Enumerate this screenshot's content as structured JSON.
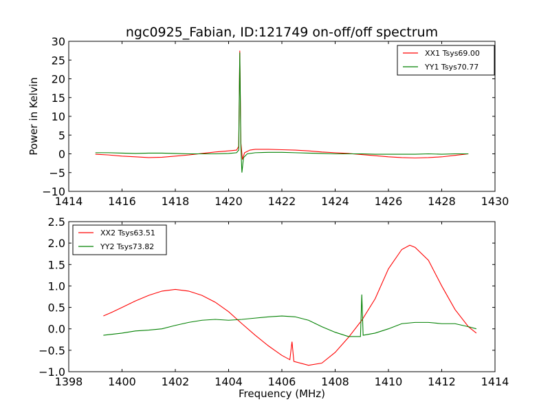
{
  "title": "ngc0925_Fabian, ID:121749 on-off/off spectrum",
  "chart_data": [
    {
      "type": "line",
      "ylabel": "Power in Kelvin",
      "xlabel": "",
      "xlim": [
        1414,
        1430
      ],
      "ylim": [
        -10,
        30
      ],
      "xticks": [
        1414,
        1416,
        1418,
        1420,
        1422,
        1424,
        1426,
        1428,
        1430
      ],
      "yticks": [
        -10,
        -5,
        0,
        5,
        10,
        15,
        20,
        25,
        30
      ],
      "legend_position": "top-right",
      "series": [
        {
          "name": "XX1 Tsys69.00",
          "color": "#ff0000",
          "points": [
            [
              1415.0,
              -0.1
            ],
            [
              1415.5,
              -0.3
            ],
            [
              1416.0,
              -0.6
            ],
            [
              1416.5,
              -0.8
            ],
            [
              1417.0,
              -1.0
            ],
            [
              1417.5,
              -0.9
            ],
            [
              1418.0,
              -0.6
            ],
            [
              1418.5,
              -0.3
            ],
            [
              1419.0,
              0.1
            ],
            [
              1419.5,
              0.5
            ],
            [
              1420.0,
              0.8
            ],
            [
              1420.3,
              1.0
            ],
            [
              1420.38,
              2.0
            ],
            [
              1420.42,
              27.5
            ],
            [
              1420.46,
              3.0
            ],
            [
              1420.52,
              -1.5
            ],
            [
              1420.6,
              0.3
            ],
            [
              1420.8,
              1.0
            ],
            [
              1421.0,
              1.2
            ],
            [
              1421.5,
              1.2
            ],
            [
              1422.0,
              1.1
            ],
            [
              1422.5,
              1.0
            ],
            [
              1423.0,
              0.8
            ],
            [
              1423.5,
              0.5
            ],
            [
              1424.0,
              0.3
            ],
            [
              1424.5,
              0.1
            ],
            [
              1425.0,
              -0.2
            ],
            [
              1425.5,
              -0.5
            ],
            [
              1426.0,
              -0.8
            ],
            [
              1426.5,
              -1.0
            ],
            [
              1427.0,
              -1.1
            ],
            [
              1427.5,
              -1.0
            ],
            [
              1428.0,
              -0.8
            ],
            [
              1428.5,
              -0.4
            ],
            [
              1429.0,
              0.0
            ]
          ]
        },
        {
          "name": "YY1 Tsys70.77",
          "color": "#008000",
          "points": [
            [
              1415.0,
              0.3
            ],
            [
              1415.5,
              0.3
            ],
            [
              1416.0,
              0.2
            ],
            [
              1416.5,
              0.1
            ],
            [
              1417.0,
              0.2
            ],
            [
              1417.5,
              0.2
            ],
            [
              1418.0,
              0.1
            ],
            [
              1418.5,
              0.0
            ],
            [
              1419.0,
              0.0
            ],
            [
              1419.5,
              0.0
            ],
            [
              1420.0,
              0.1
            ],
            [
              1420.3,
              0.3
            ],
            [
              1420.38,
              1.0
            ],
            [
              1420.42,
              27.0
            ],
            [
              1420.46,
              2.0
            ],
            [
              1420.5,
              -5.0
            ],
            [
              1420.56,
              -1.0
            ],
            [
              1420.7,
              0.0
            ],
            [
              1421.0,
              0.3
            ],
            [
              1421.5,
              0.4
            ],
            [
              1422.0,
              0.4
            ],
            [
              1422.5,
              0.3
            ],
            [
              1423.0,
              0.2
            ],
            [
              1423.5,
              0.1
            ],
            [
              1424.0,
              0.0
            ],
            [
              1424.5,
              0.0
            ],
            [
              1425.0,
              0.0
            ],
            [
              1425.5,
              -0.1
            ],
            [
              1426.0,
              -0.1
            ],
            [
              1426.5,
              -0.1
            ],
            [
              1427.0,
              -0.1
            ],
            [
              1427.5,
              0.0
            ],
            [
              1428.0,
              -0.1
            ],
            [
              1428.5,
              0.0
            ],
            [
              1429.0,
              0.0
            ]
          ]
        }
      ]
    },
    {
      "type": "line",
      "xlabel": "Frequency (MHz)",
      "ylabel": "",
      "xlim": [
        1398,
        1414
      ],
      "ylim": [
        -1.0,
        2.5
      ],
      "xticks": [
        1398,
        1400,
        1402,
        1404,
        1406,
        1408,
        1410,
        1412,
        1414
      ],
      "yticks": [
        -1.0,
        -0.5,
        0.0,
        0.5,
        1.0,
        1.5,
        2.0,
        2.5
      ],
      "legend_position": "top-left",
      "series": [
        {
          "name": "XX2 Tsys63.51",
          "color": "#ff0000",
          "points": [
            [
              1399.3,
              0.3
            ],
            [
              1399.6,
              0.38
            ],
            [
              1400.0,
              0.5
            ],
            [
              1400.5,
              0.65
            ],
            [
              1401.0,
              0.78
            ],
            [
              1401.5,
              0.88
            ],
            [
              1402.0,
              0.92
            ],
            [
              1402.5,
              0.88
            ],
            [
              1403.0,
              0.78
            ],
            [
              1403.5,
              0.62
            ],
            [
              1404.0,
              0.4
            ],
            [
              1404.5,
              0.12
            ],
            [
              1405.0,
              -0.15
            ],
            [
              1405.5,
              -0.4
            ],
            [
              1406.0,
              -0.62
            ],
            [
              1406.3,
              -0.72
            ],
            [
              1406.38,
              -0.3
            ],
            [
              1406.45,
              -0.76
            ],
            [
              1407.0,
              -0.85
            ],
            [
              1407.5,
              -0.8
            ],
            [
              1408.0,
              -0.55
            ],
            [
              1408.5,
              -0.2
            ],
            [
              1409.0,
              0.2
            ],
            [
              1409.5,
              0.7
            ],
            [
              1410.0,
              1.4
            ],
            [
              1410.5,
              1.85
            ],
            [
              1410.8,
              1.95
            ],
            [
              1411.0,
              1.9
            ],
            [
              1411.5,
              1.6
            ],
            [
              1412.0,
              1.0
            ],
            [
              1412.5,
              0.45
            ],
            [
              1413.0,
              0.05
            ],
            [
              1413.3,
              -0.1
            ]
          ]
        },
        {
          "name": "YY2 Tsys73.82",
          "color": "#008000",
          "points": [
            [
              1399.3,
              -0.15
            ],
            [
              1400.0,
              -0.1
            ],
            [
              1400.5,
              -0.05
            ],
            [
              1401.0,
              -0.03
            ],
            [
              1401.5,
              0.0
            ],
            [
              1402.0,
              0.08
            ],
            [
              1402.5,
              0.15
            ],
            [
              1403.0,
              0.2
            ],
            [
              1403.5,
              0.22
            ],
            [
              1404.0,
              0.2
            ],
            [
              1404.5,
              0.22
            ],
            [
              1405.0,
              0.25
            ],
            [
              1405.5,
              0.28
            ],
            [
              1406.0,
              0.3
            ],
            [
              1406.5,
              0.28
            ],
            [
              1407.0,
              0.2
            ],
            [
              1407.5,
              0.05
            ],
            [
              1408.0,
              -0.08
            ],
            [
              1408.5,
              -0.18
            ],
            [
              1408.95,
              -0.18
            ],
            [
              1409.0,
              0.8
            ],
            [
              1409.05,
              -0.15
            ],
            [
              1409.5,
              -0.1
            ],
            [
              1410.0,
              0.0
            ],
            [
              1410.5,
              0.12
            ],
            [
              1411.0,
              0.15
            ],
            [
              1411.5,
              0.15
            ],
            [
              1412.0,
              0.12
            ],
            [
              1412.5,
              0.12
            ],
            [
              1413.0,
              0.05
            ],
            [
              1413.3,
              0.0
            ]
          ]
        }
      ]
    }
  ]
}
